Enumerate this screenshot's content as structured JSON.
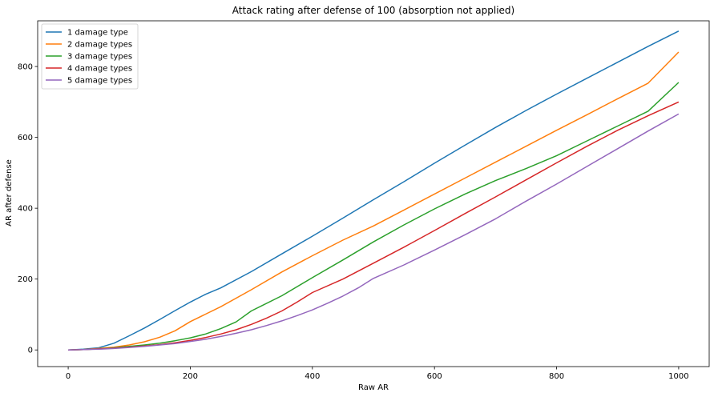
{
  "chart_data": {
    "type": "line",
    "title": "Attack rating after defense of 100 (absorption not applied)",
    "xlabel": "Raw AR",
    "ylabel": "AR after defense",
    "xlim": [
      -50,
      1050
    ],
    "ylim": [
      -47,
      929
    ],
    "xticks": [
      0,
      200,
      400,
      600,
      800,
      1000
    ],
    "yticks": [
      0,
      200,
      400,
      600,
      800
    ],
    "legend_position": "upper-left",
    "grid": false,
    "series": [
      {
        "name": "1 damage type",
        "color": "#1f77b4",
        "x": [
          0,
          25,
          50,
          75,
          100,
          125,
          150,
          175,
          200,
          225,
          250,
          300,
          350,
          400,
          450,
          500,
          550,
          600,
          650,
          700,
          750,
          800,
          850,
          900,
          950,
          1000
        ],
        "y": [
          0,
          2,
          6,
          19,
          40,
          62,
          86,
          111,
          135,
          157,
          175,
          221,
          271,
          321,
          372,
          424,
          475,
          527,
          578,
          628,
          676,
          722,
          767,
          812,
          857,
          900
        ]
      },
      {
        "name": "2 damage types",
        "color": "#ff7f0e",
        "x": [
          0,
          25,
          50,
          75,
          100,
          125,
          150,
          175,
          200,
          225,
          250,
          300,
          350,
          400,
          450,
          500,
          550,
          600,
          650,
          700,
          750,
          800,
          850,
          900,
          950,
          1000
        ],
        "y": [
          0,
          1,
          4,
          8,
          14,
          23,
          36,
          54,
          80,
          101,
          122,
          170,
          220,
          266,
          310,
          350,
          395,
          440,
          485,
          530,
          575,
          620,
          664,
          709,
          753,
          841
        ]
      },
      {
        "name": "3 damage types",
        "color": "#2ca02c",
        "x": [
          0,
          25,
          50,
          75,
          100,
          125,
          150,
          175,
          200,
          225,
          250,
          275,
          300,
          350,
          400,
          450,
          500,
          550,
          600,
          650,
          700,
          750,
          800,
          850,
          900,
          950,
          1000
        ],
        "y": [
          0,
          1,
          3,
          6,
          10,
          14,
          19,
          26,
          34,
          45,
          60,
          79,
          110,
          153,
          204,
          254,
          305,
          353,
          398,
          440,
          478,
          512,
          548,
          590,
          632,
          674,
          755
        ]
      },
      {
        "name": "4 damage types",
        "color": "#d62728",
        "x": [
          0,
          25,
          50,
          75,
          100,
          125,
          150,
          175,
          200,
          225,
          250,
          275,
          300,
          325,
          350,
          375,
          400,
          450,
          500,
          550,
          600,
          650,
          700,
          750,
          800,
          850,
          900,
          950,
          1000
        ],
        "y": [
          0,
          1,
          3,
          5,
          8,
          11,
          15,
          20,
          27,
          35,
          45,
          57,
          72,
          90,
          110,
          135,
          162,
          200,
          245,
          290,
          337,
          385,
          432,
          480,
          528,
          575,
          620,
          661,
          700
        ]
      },
      {
        "name": "5 damage types",
        "color": "#9467bd",
        "x": [
          0,
          25,
          50,
          75,
          100,
          125,
          150,
          175,
          200,
          225,
          250,
          275,
          300,
          325,
          350,
          375,
          400,
          425,
          450,
          475,
          500,
          550,
          600,
          650,
          700,
          750,
          800,
          850,
          900,
          950,
          1000
        ],
        "y": [
          0,
          1,
          2,
          4,
          7,
          10,
          14,
          18,
          24,
          30,
          38,
          47,
          57,
          69,
          82,
          97,
          113,
          132,
          152,
          175,
          202,
          240,
          282,
          325,
          370,
          420,
          468,
          518,
          568,
          618,
          666
        ]
      }
    ]
  }
}
